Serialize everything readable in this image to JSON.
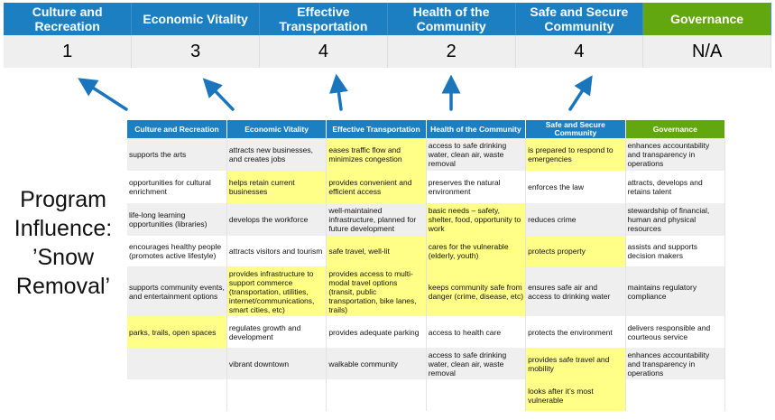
{
  "categories": [
    {
      "name": "Culture and Recreation",
      "score": "1"
    },
    {
      "name": "Economic Vitality",
      "score": "3"
    },
    {
      "name": "Effective Transportation",
      "score": "4"
    },
    {
      "name": "Health of the Community",
      "score": "2"
    },
    {
      "name": "Safe and Secure Community",
      "score": "4"
    },
    {
      "name": "Governance",
      "score": "N/A"
    }
  ],
  "label": {
    "line1": "Program",
    "line2": "Influence:",
    "line3": "’Snow",
    "line4": "Removal’"
  },
  "colors": {
    "header_blue": "#1c7fc1",
    "header_green": "#62a70f",
    "highlight": "#ffff88",
    "arrow": "#1a75bc"
  },
  "grid": {
    "headers": [
      "Culture and Recreation",
      "Economic Vitality",
      "Effective Transportation",
      "Health of the Community",
      "Safe and Secure Community",
      "Governance"
    ],
    "rows": [
      [
        {
          "t": "supports the arts"
        },
        {
          "t": "attracts new businesses, and creates jobs"
        },
        {
          "t": "eases traffic flow and minimizes congestion",
          "h": true
        },
        {
          "t": "access to safe drinking water, clean air, waste removal"
        },
        {
          "t": "is prepared to respond to emergencies",
          "h": true
        },
        {
          "t": "enhances accountability and transparency in operations"
        }
      ],
      [
        {
          "t": "opportunities for cultural enrichment"
        },
        {
          "t": "helps retain current businesses",
          "h": true
        },
        {
          "t": "provides convenient and efficient access",
          "h": true
        },
        {
          "t": "preserves the natural environment"
        },
        {
          "t": "enforces the law"
        },
        {
          "t": "attracts, develops and retains talent"
        }
      ],
      [
        {
          "t": "life-long learning opportunities (libraries)"
        },
        {
          "t": "develops the workforce"
        },
        {
          "t": "well-maintained infrastructure, planned for future development"
        },
        {
          "t": "basic needs – safety, shelter, food, opportunity to work",
          "h": true
        },
        {
          "t": "reduces crime"
        },
        {
          "t": "stewardship of financial, human and physical resources"
        }
      ],
      [
        {
          "t": "encourages healthy people (promotes active lifestyle)"
        },
        {
          "t": "attracts visitors and tourism"
        },
        {
          "t": "safe travel, well-lit",
          "h": true
        },
        {
          "t": "cares for the vulnerable (elderly, youth)",
          "h": true
        },
        {
          "t": "protects property",
          "h": true
        },
        {
          "t": "assists and supports decision makers"
        }
      ],
      [
        {
          "t": "supports community events, and entertainment options"
        },
        {
          "t": "provides infrastructure to support commerce (transportation, utilities, internet/communications, smart cities, etc)",
          "h": true
        },
        {
          "t": "provides access to multi-modal travel options (transit, public transportation, bike lanes, trails)",
          "h": true
        },
        {
          "t": "keeps community safe from danger (crime, disease, etc)",
          "h": true
        },
        {
          "t": "ensures safe air and access to drinking water"
        },
        {
          "t": "maintains regulatory compliance"
        }
      ],
      [
        {
          "t": "parks, trails, open spaces",
          "h": true
        },
        {
          "t": "regulates growth and development"
        },
        {
          "t": "provides adequate parking"
        },
        {
          "t": "access to health care"
        },
        {
          "t": "protects the environment"
        },
        {
          "t": "delivers responsible and courteous service"
        }
      ],
      [
        {
          "t": ""
        },
        {
          "t": "vibrant downtown"
        },
        {
          "t": "walkable community"
        },
        {
          "t": "access to safe drinking water, clean air, waste removal"
        },
        {
          "t": "provides safe travel and mobility",
          "h": true
        },
        {
          "t": "enhances accountability and transparency in operations"
        }
      ],
      [
        {
          "t": ""
        },
        {
          "t": ""
        },
        {
          "t": ""
        },
        {
          "t": ""
        },
        {
          "t": "looks after it’s most vulnerable",
          "h": true
        },
        {
          "t": ""
        }
      ]
    ]
  }
}
